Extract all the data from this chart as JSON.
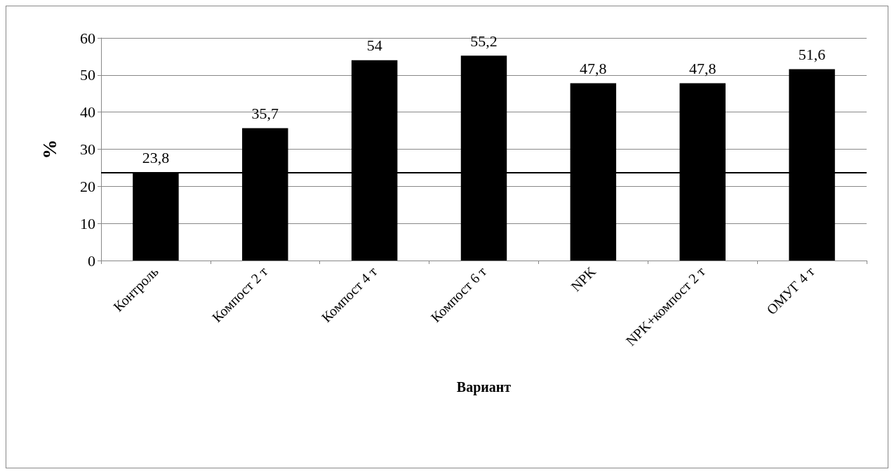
{
  "chart_data": {
    "type": "bar",
    "xlabel": "Вариант",
    "ylabel": "%",
    "categories": [
      "Контроль",
      "Компост 2 т",
      "Компост 4 т",
      "Компост 6 т",
      "NPK",
      "NPK+компост 2 т",
      "ОМУГ 4 т"
    ],
    "values": [
      23.8,
      35.7,
      54,
      55.2,
      47.8,
      47.8,
      51.6
    ],
    "value_labels": [
      "23,8",
      "35,7",
      "54",
      "55,2",
      "47,8",
      "47,8",
      "51,6"
    ],
    "color": "#000000",
    "ylim": [
      0,
      60
    ],
    "yticks": [
      0,
      10,
      20,
      30,
      40,
      50,
      60
    ],
    "grid": "y",
    "ref_lines": [
      {
        "axis": "y",
        "value": 23.8,
        "color": "#000000"
      }
    ]
  }
}
